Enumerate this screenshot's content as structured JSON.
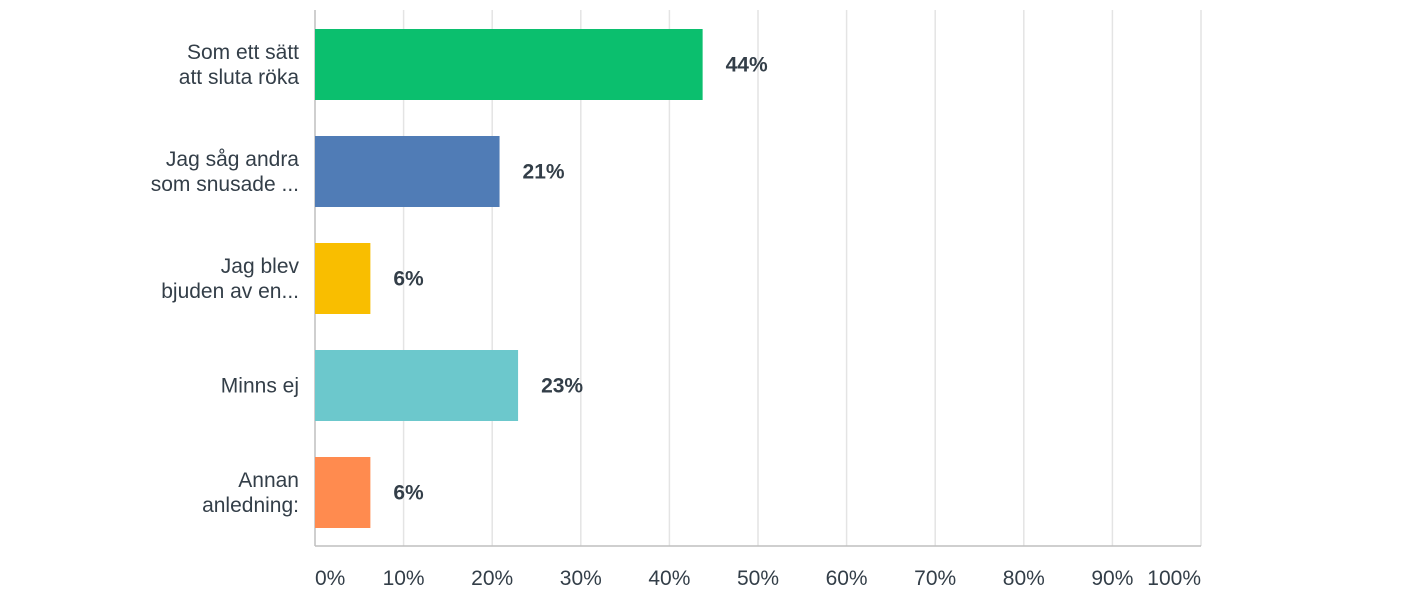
{
  "chart_data": {
    "type": "bar",
    "orientation": "horizontal",
    "categories": [
      [
        "Som ett sätt",
        "att sluta röka"
      ],
      [
        "Jag såg andra",
        "som snusade ..."
      ],
      [
        "Jag blev",
        "bjuden av en..."
      ],
      [
        "Minns ej"
      ],
      [
        "Annan",
        "anledning:"
      ]
    ],
    "values": [
      43.75,
      20.83,
      6.25,
      22.92,
      6.25
    ],
    "value_labels": [
      "44%",
      "21%",
      "6%",
      "23%",
      "6%"
    ],
    "colors": [
      "#0bbf6e",
      "#507cb6",
      "#f9be00",
      "#6cc8cc",
      "#ff8b4f"
    ],
    "xlim": [
      0,
      100
    ],
    "x_ticks": [
      0,
      10,
      20,
      30,
      40,
      50,
      60,
      70,
      80,
      90,
      100
    ],
    "x_tick_labels": [
      "0%",
      "10%",
      "20%",
      "30%",
      "40%",
      "50%",
      "60%",
      "70%",
      "80%",
      "90%",
      "100%"
    ],
    "grid": true,
    "legend": "none"
  }
}
